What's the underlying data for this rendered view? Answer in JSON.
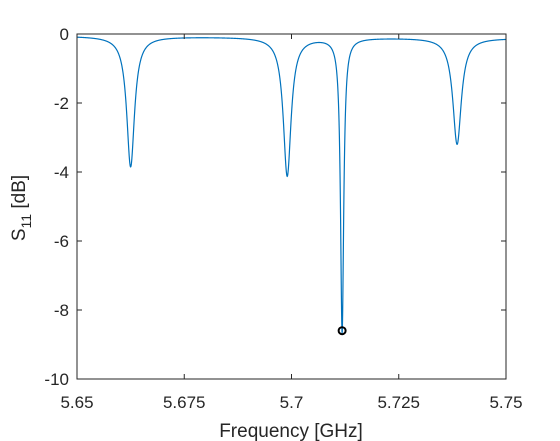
{
  "chart_data": {
    "type": "line",
    "xlabel": "Frequency [GHz]",
    "ylabel_main": "S",
    "ylabel_sub": "11",
    "ylabel_unit": " [dB]",
    "xlim": [
      5.65,
      5.75
    ],
    "ylim": [
      -10,
      0
    ],
    "grid": false,
    "line_color": "#0072bd",
    "axis_color": "#262626",
    "marker_color": "#000000",
    "x_ticks": [
      {
        "value": 5.65,
        "label": "5.65"
      },
      {
        "value": 5.675,
        "label": "5.675"
      },
      {
        "value": 5.7,
        "label": "5.7"
      },
      {
        "value": 5.725,
        "label": "5.725"
      },
      {
        "value": 5.75,
        "label": "5.75"
      }
    ],
    "y_ticks": [
      {
        "value": 0,
        "label": "0"
      },
      {
        "value": -2,
        "label": "-2"
      },
      {
        "value": -4,
        "label": "-4"
      },
      {
        "value": -6,
        "label": "-6"
      },
      {
        "value": -8,
        "label": "-8"
      },
      {
        "value": -10,
        "label": "-10"
      }
    ],
    "baseline": -0.06,
    "baseline_tilt": 0.06,
    "resonances": [
      {
        "f0": 5.6625,
        "depth": 3.78,
        "width": 0.0011
      },
      {
        "f0": 5.699,
        "depth": 4.02,
        "width": 0.0011
      },
      {
        "f0": 5.7118,
        "depth": 8.54,
        "width": 0.00045
      },
      {
        "f0": 5.7386,
        "depth": 3.08,
        "width": 0.0012
      }
    ],
    "marker": {
      "x": 5.7118,
      "y": -8.6
    }
  }
}
